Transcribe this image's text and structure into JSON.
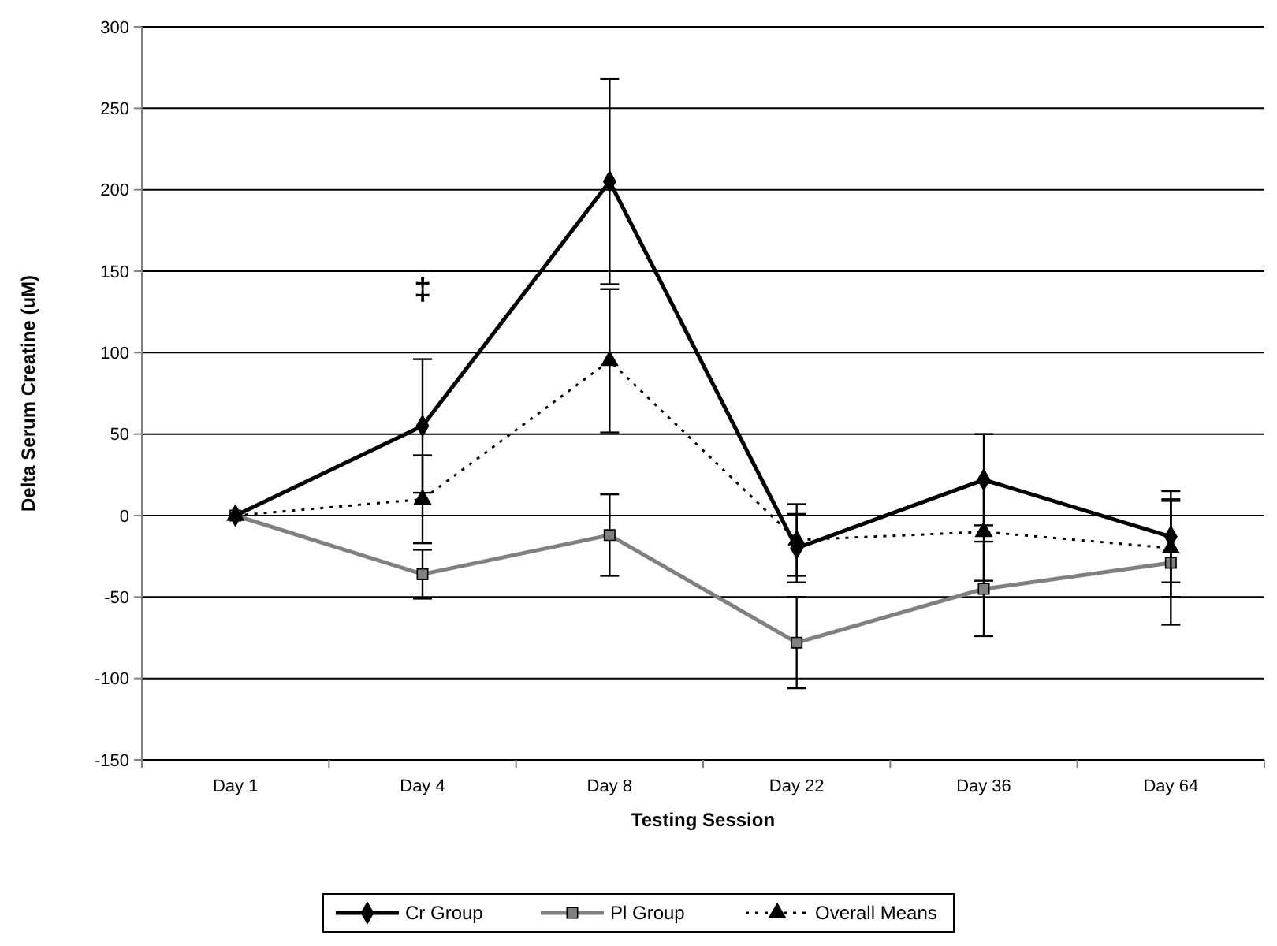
{
  "chart_data": {
    "type": "line",
    "xlabel": "Testing Session",
    "ylabel": "Delta Serum Creatine (uM)",
    "categories": [
      "Day 1",
      "Day 4",
      "Day 8",
      "Day 22",
      "Day 36",
      "Day 64"
    ],
    "series": [
      {
        "name": "Cr Group",
        "color": "#000000",
        "marker": "diamond",
        "line_style": "solid",
        "values": [
          0,
          55,
          205,
          -20,
          22,
          -13
        ],
        "errors": [
          null,
          41,
          63,
          21,
          28,
          28
        ]
      },
      {
        "name": "Pl Group",
        "color": "#808080",
        "marker": "square",
        "line_style": "solid",
        "values": [
          0,
          -36,
          -12,
          -78,
          -45,
          -29
        ],
        "errors": [
          null,
          15,
          25,
          28,
          29,
          38
        ]
      },
      {
        "name": "Overall Means",
        "color": "#000000",
        "marker": "triangle",
        "line_style": "dotted",
        "values": [
          0,
          10,
          95,
          -15,
          -10,
          -20
        ],
        "errors": [
          null,
          27,
          44,
          22,
          30,
          30
        ]
      }
    ],
    "ylim": [
      -150,
      300
    ],
    "yticks": [
      -150,
      -100,
      -50,
      0,
      50,
      100,
      150,
      200,
      250,
      300
    ],
    "grid": "y",
    "legend": "bottom",
    "annotations": [
      "‡"
    ]
  }
}
